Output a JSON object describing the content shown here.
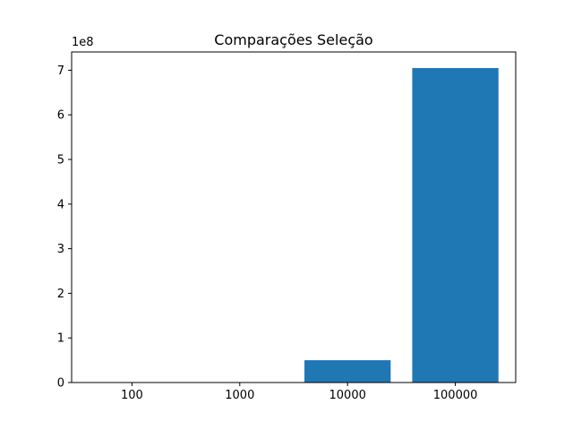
{
  "chart_data": {
    "type": "bar",
    "title": "Comparações Seleção",
    "xlabel": "",
    "ylabel": "",
    "categories": [
      "100",
      "1000",
      "10000",
      "100000"
    ],
    "values": [
      4950,
      499500,
      49995000,
      704982704
    ],
    "scale_label": "1e8",
    "yticks": [
      0,
      1,
      2,
      3,
      4,
      5,
      6,
      7
    ],
    "ytick_multiplier": 100000000,
    "ylim": [
      0,
      741000000
    ],
    "bar_color": "#1f77b4",
    "grid": false,
    "legend": "none"
  }
}
